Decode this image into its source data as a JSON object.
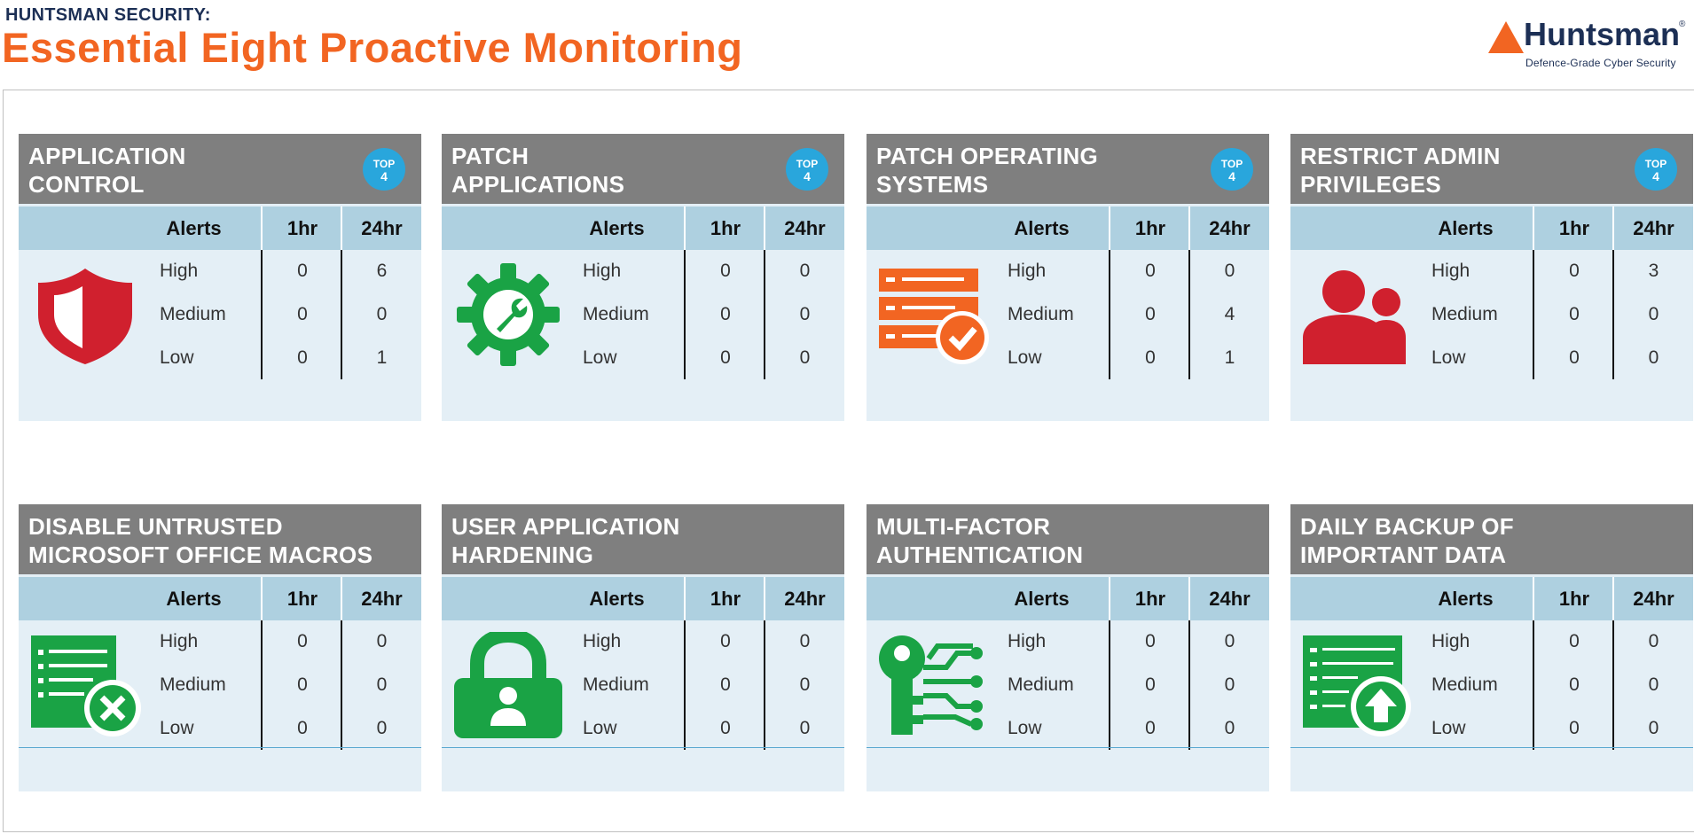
{
  "header": {
    "kicker": "HUNTSMAN SECURITY:",
    "title": "Essential Eight Proactive Monitoring"
  },
  "logo": {
    "name": "Huntsman",
    "registered": "®",
    "tagline": "Defence-Grade Cyber Security"
  },
  "columns": {
    "alerts": "Alerts",
    "h1": "1hr",
    "h24": "24hr"
  },
  "severity_labels": [
    "High",
    "Medium",
    "Low"
  ],
  "badge": {
    "line1": "TOP",
    "line2": "4"
  },
  "colors": {
    "orange": "#f26522",
    "navy": "#1c2f55",
    "header_gray": "#7f7f7f",
    "subheader_blue": "#aed0e0",
    "panel_bg": "#e4eff6",
    "badge_blue": "#29a6dc",
    "red": "#d0202e",
    "green": "#1aa345"
  },
  "panels": [
    {
      "title_l1": "APPLICATION",
      "title_l2": "CONTROL",
      "top4": true,
      "icon": "shield-icon",
      "icon_color": "#d0202e",
      "high": [
        "0",
        "6"
      ],
      "medium": [
        "0",
        "0"
      ],
      "low": [
        "0",
        "1"
      ]
    },
    {
      "title_l1": "PATCH",
      "title_l2": "APPLICATIONS",
      "top4": true,
      "icon": "gear-wrench-icon",
      "icon_color": "#1aa345",
      "high": [
        "0",
        "0"
      ],
      "medium": [
        "0",
        "0"
      ],
      "low": [
        "0",
        "0"
      ]
    },
    {
      "title_l1": "PATCH OPERATING",
      "title_l2": "SYSTEMS",
      "top4": true,
      "icon": "server-check-icon",
      "icon_color": "#f26522",
      "high": [
        "0",
        "0"
      ],
      "medium": [
        "0",
        "4"
      ],
      "low": [
        "0",
        "1"
      ]
    },
    {
      "title_l1": "RESTRICT ADMIN",
      "title_l2": "PRIVILEGES",
      "top4": true,
      "icon": "users-icon",
      "icon_color": "#d0202e",
      "high": [
        "0",
        "3"
      ],
      "medium": [
        "0",
        "0"
      ],
      "low": [
        "0",
        "0"
      ]
    },
    {
      "title_l1": "DISABLE UNTRUSTED",
      "title_l2": "MICROSOFT OFFICE MACROS",
      "top4": false,
      "icon": "document-blocked-icon",
      "icon_color": "#1aa345",
      "high": [
        "0",
        "0"
      ],
      "medium": [
        "0",
        "0"
      ],
      "low": [
        "0",
        "0"
      ]
    },
    {
      "title_l1": "USER APPLICATION",
      "title_l2": "HARDENING",
      "top4": false,
      "icon": "padlock-user-icon",
      "icon_color": "#1aa345",
      "high": [
        "0",
        "0"
      ],
      "medium": [
        "0",
        "0"
      ],
      "low": [
        "0",
        "0"
      ]
    },
    {
      "title_l1": "MULTI-FACTOR",
      "title_l2": "AUTHENTICATION",
      "top4": false,
      "icon": "key-network-icon",
      "icon_color": "#1aa345",
      "high": [
        "0",
        "0"
      ],
      "medium": [
        "0",
        "0"
      ],
      "low": [
        "0",
        "0"
      ]
    },
    {
      "title_l1": "DAILY BACKUP OF",
      "title_l2": "IMPORTANT DATA",
      "top4": false,
      "icon": "backup-upload-icon",
      "icon_color": "#1aa345",
      "high": [
        "0",
        "0"
      ],
      "medium": [
        "0",
        "0"
      ],
      "low": [
        "0",
        "0"
      ]
    }
  ]
}
